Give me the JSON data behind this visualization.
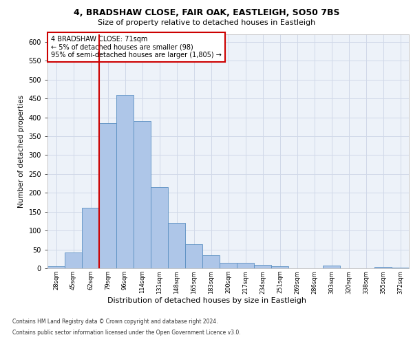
{
  "title1": "4, BRADSHAW CLOSE, FAIR OAK, EASTLEIGH, SO50 7BS",
  "title2": "Size of property relative to detached houses in Eastleigh",
  "xlabel": "Distribution of detached houses by size in Eastleigh",
  "ylabel": "Number of detached properties",
  "categories": [
    "28sqm",
    "45sqm",
    "62sqm",
    "79sqm",
    "96sqm",
    "114sqm",
    "131sqm",
    "148sqm",
    "165sqm",
    "183sqm",
    "200sqm",
    "217sqm",
    "234sqm",
    "251sqm",
    "269sqm",
    "286sqm",
    "303sqm",
    "320sqm",
    "338sqm",
    "355sqm",
    "372sqm"
  ],
  "values": [
    5,
    42,
    160,
    385,
    460,
    390,
    215,
    120,
    63,
    35,
    14,
    15,
    10,
    6,
    0,
    0,
    7,
    0,
    0,
    3,
    1
  ],
  "bar_color": "#aec6e8",
  "bar_edge_color": "#5a8fc2",
  "grid_color": "#d0d8e8",
  "vline_color": "#cc0000",
  "annotation_text": "4 BRADSHAW CLOSE: 71sqm\n← 5% of detached houses are smaller (98)\n95% of semi-detached houses are larger (1,805) →",
  "annotation_box_color": "#cc0000",
  "ylim": [
    0,
    620
  ],
  "yticks": [
    0,
    50,
    100,
    150,
    200,
    250,
    300,
    350,
    400,
    450,
    500,
    550,
    600
  ],
  "footnote1": "Contains HM Land Registry data © Crown copyright and database right 2024.",
  "footnote2": "Contains public sector information licensed under the Open Government Licence v3.0.",
  "background_color": "#edf2f9",
  "fig_background": "#ffffff"
}
